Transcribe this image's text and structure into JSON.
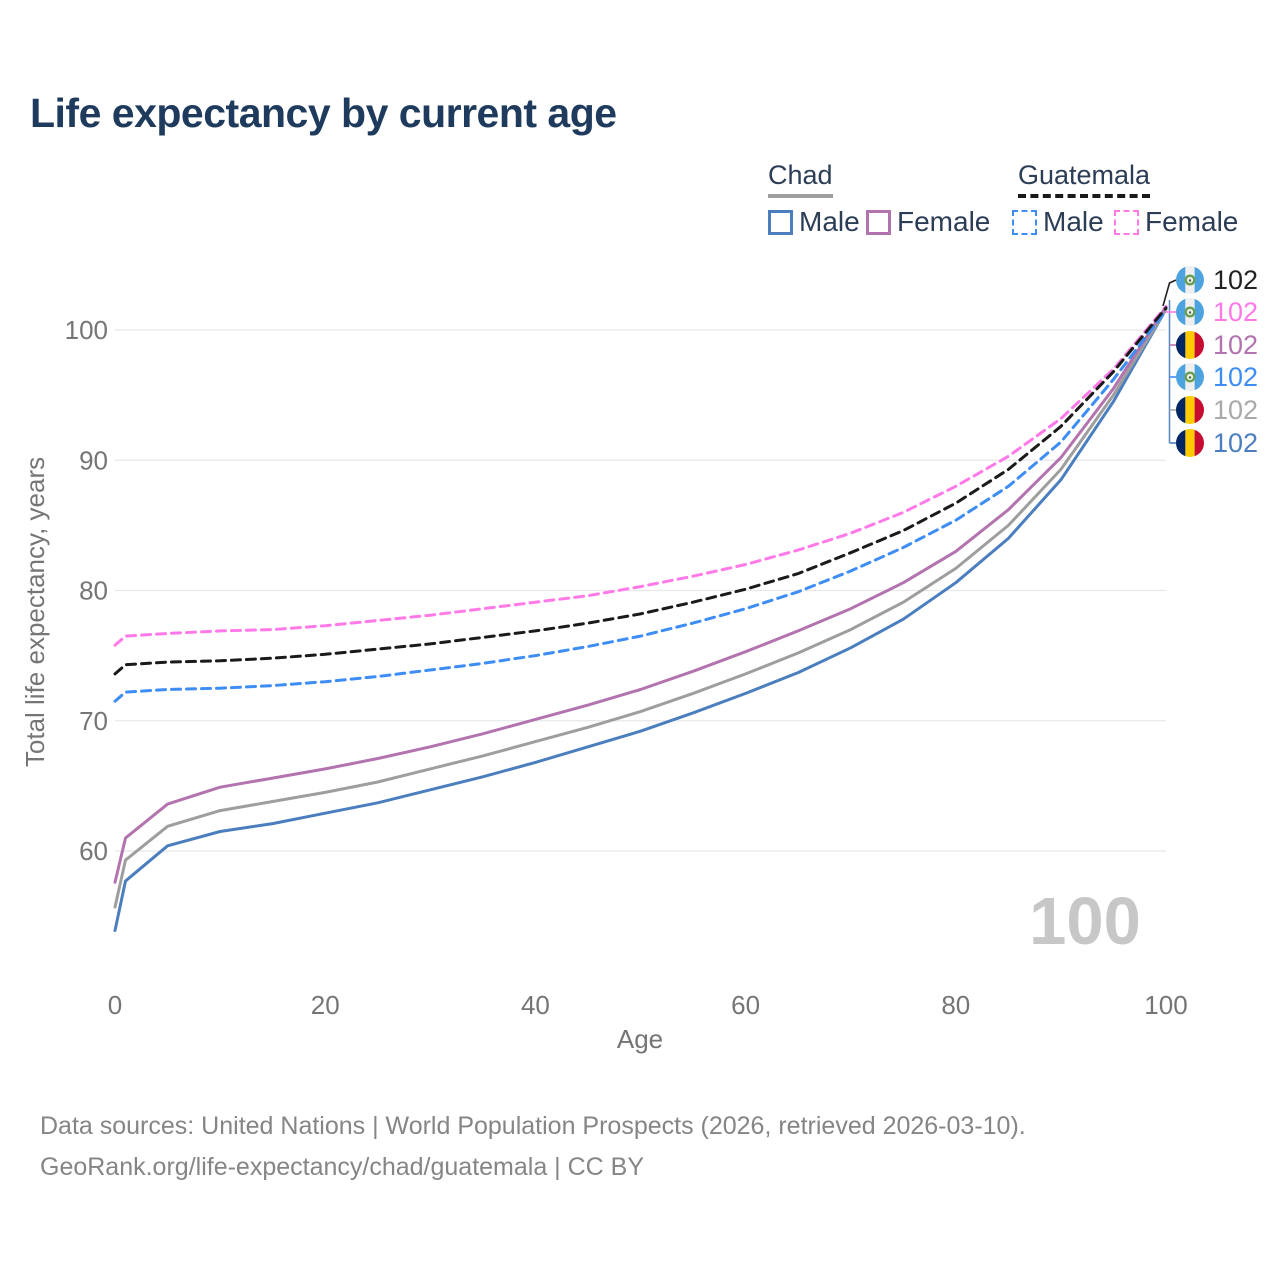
{
  "title": "Life expectancy by current age",
  "watermark": "100",
  "legend": {
    "groups": [
      {
        "label": "Chad",
        "line_style": "solid",
        "underline_color": "#9e9e9e",
        "items": [
          {
            "label": "Male",
            "color": "#4a7ebe",
            "dash": false
          },
          {
            "label": "Female",
            "color": "#b273ae",
            "dash": false
          }
        ]
      },
      {
        "label": "Guatemala",
        "line_style": "dashed",
        "underline_color": "#1a1a1a",
        "items": [
          {
            "label": "Male",
            "color": "#3d8df5",
            "dash": true
          },
          {
            "label": "Female",
            "color": "#ff7ae8",
            "dash": true
          }
        ]
      }
    ]
  },
  "chart_data": {
    "type": "line",
    "title": "Life expectancy by current age",
    "xlabel": "Age",
    "ylabel": "Total life expectancy, years",
    "xlim": [
      0,
      100
    ],
    "ylim": [
      53,
      103
    ],
    "x_ticks": [
      0,
      20,
      40,
      60,
      80,
      100
    ],
    "y_ticks": [
      60,
      70,
      80,
      90,
      100
    ],
    "grid": "horizontal-only",
    "legend_position": "top-right",
    "x": [
      0,
      1,
      5,
      10,
      15,
      20,
      25,
      30,
      35,
      40,
      45,
      50,
      55,
      60,
      65,
      70,
      75,
      80,
      85,
      90,
      95,
      100
    ],
    "series": [
      {
        "name": "Guatemala All",
        "country": "Guatemala",
        "sex": "all",
        "color": "#1a1a1a",
        "dash": true,
        "values": [
          73.6,
          74.3,
          74.5,
          74.6,
          74.8,
          75.1,
          75.5,
          75.9,
          76.4,
          76.9,
          77.5,
          78.2,
          79.1,
          80.1,
          81.3,
          82.9,
          84.6,
          86.7,
          89.3,
          92.6,
          96.8,
          101.7
        ],
        "end_label": "102"
      },
      {
        "name": "Guatemala Female",
        "country": "Guatemala",
        "sex": "female",
        "color": "#ff7ae8",
        "dash": true,
        "values": [
          75.8,
          76.5,
          76.7,
          76.9,
          77.0,
          77.3,
          77.7,
          78.1,
          78.6,
          79.1,
          79.6,
          80.3,
          81.1,
          82.0,
          83.1,
          84.4,
          86.0,
          88.0,
          90.3,
          93.2,
          97.0,
          101.8
        ],
        "end_label": "102"
      },
      {
        "name": "Chad Female",
        "country": "Chad",
        "sex": "female",
        "color": "#b273ae",
        "dash": false,
        "values": [
          57.6,
          61.0,
          63.6,
          64.9,
          65.6,
          66.3,
          67.1,
          68.0,
          69.0,
          70.1,
          71.2,
          72.4,
          73.8,
          75.3,
          76.9,
          78.6,
          80.6,
          83.0,
          86.2,
          90.2,
          95.5,
          101.8
        ],
        "end_label": "102"
      },
      {
        "name": "Guatemala Male",
        "country": "Guatemala",
        "sex": "male",
        "color": "#3d8df5",
        "dash": true,
        "values": [
          71.5,
          72.2,
          72.4,
          72.5,
          72.7,
          73.0,
          73.4,
          73.9,
          74.4,
          75.0,
          75.7,
          76.5,
          77.5,
          78.6,
          79.9,
          81.5,
          83.3,
          85.4,
          88.0,
          91.4,
          96.2,
          101.5
        ],
        "end_label": "102"
      },
      {
        "name": "Chad All",
        "country": "Chad",
        "sex": "all",
        "color": "#9e9e9e",
        "dash": false,
        "values": [
          55.7,
          59.3,
          61.9,
          63.1,
          63.8,
          64.5,
          65.3,
          66.3,
          67.3,
          68.4,
          69.5,
          70.7,
          72.1,
          73.6,
          75.2,
          77.0,
          79.1,
          81.7,
          85.0,
          89.3,
          95.0,
          101.6
        ],
        "end_label": "102"
      },
      {
        "name": "Chad Male",
        "country": "Chad",
        "sex": "male",
        "color": "#4a7ebe",
        "dash": false,
        "values": [
          53.9,
          57.7,
          60.4,
          61.5,
          62.1,
          62.9,
          63.7,
          64.7,
          65.7,
          66.8,
          68.0,
          69.2,
          70.6,
          72.1,
          73.7,
          75.6,
          77.8,
          80.6,
          84.0,
          88.5,
          94.5,
          101.6
        ],
        "end_label": "102"
      }
    ]
  },
  "end_rows": [
    {
      "flag": "guatemala",
      "value": "102",
      "color": "#222222"
    },
    {
      "flag": "guatemala",
      "value": "102",
      "color": "#ff7ae8"
    },
    {
      "flag": "chad",
      "value": "102",
      "color": "#b273ae"
    },
    {
      "flag": "guatemala",
      "value": "102",
      "color": "#3d8df5"
    },
    {
      "flag": "chad",
      "value": "102",
      "color": "#a9a9a9"
    },
    {
      "flag": "chad",
      "value": "102",
      "color": "#4a7ebe"
    }
  ],
  "flag_colors": {
    "guatemala_blue": "#4da3e0",
    "guatemala_white": "#efefef",
    "guatemala_emblem": "#6a9e4f",
    "chad_blue": "#002664",
    "chad_yellow": "#fecb00",
    "chad_red": "#c60c30"
  },
  "style_colors": {
    "title": "#1e3a5c",
    "axis_text": "#757575",
    "gridline": "#e8e8eb",
    "watermark": "#c7c7c7",
    "footer": "#858585",
    "bracket_blue": "#5b8ac5"
  },
  "footer": {
    "line1": "Data sources: United Nations | World Population Prospects (2026, retrieved 2026-03-10).",
    "line2": "GeoRank.org/life-expectancy/chad/guatemala | CC BY"
  }
}
